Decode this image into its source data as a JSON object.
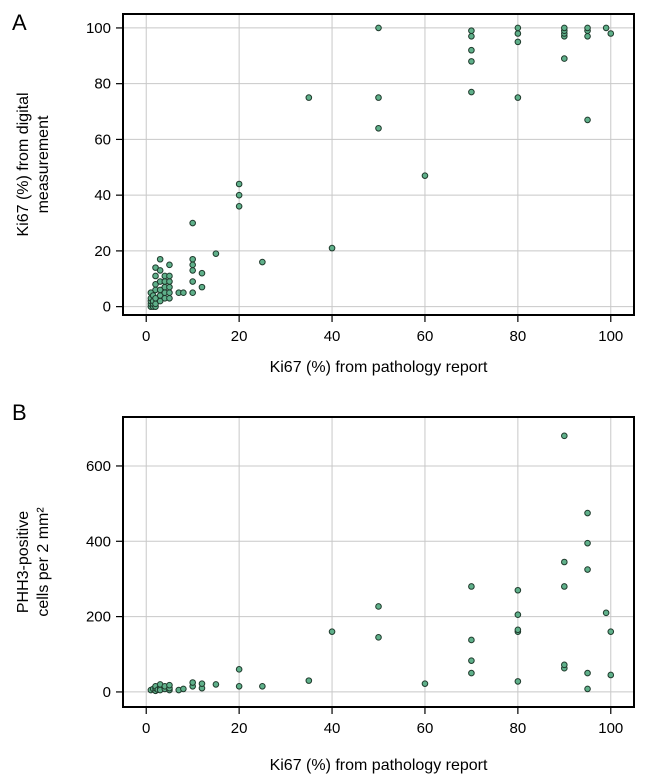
{
  "colors": {
    "point_fill": "#5fb08a",
    "point_stroke": "#1f3a2c",
    "grid": "#c8c8c8"
  },
  "chart_data": [
    {
      "panel": "A",
      "type": "scatter",
      "title": "",
      "xlabel": "Ki67 (%) from pathology report",
      "ylabel_lines": [
        "Ki67 (%) from digital",
        "measurement"
      ],
      "xlim": [
        -5,
        105
      ],
      "ylim": [
        -3,
        105
      ],
      "xticks": [
        0,
        20,
        40,
        60,
        80,
        100
      ],
      "yticks": [
        0,
        20,
        40,
        60,
        80,
        100
      ],
      "grid": true,
      "points": [
        [
          1,
          0
        ],
        [
          1,
          1
        ],
        [
          1,
          2
        ],
        [
          1,
          3
        ],
        [
          1,
          5
        ],
        [
          1.5,
          0
        ],
        [
          1.5,
          1
        ],
        [
          1.5,
          2
        ],
        [
          1.5,
          4
        ],
        [
          2,
          0
        ],
        [
          2,
          1
        ],
        [
          2,
          3
        ],
        [
          2,
          6
        ],
        [
          2,
          8
        ],
        [
          2,
          11
        ],
        [
          2,
          14
        ],
        [
          3,
          2
        ],
        [
          3,
          4
        ],
        [
          3,
          6
        ],
        [
          3,
          9
        ],
        [
          3,
          13
        ],
        [
          3,
          17
        ],
        [
          4,
          3
        ],
        [
          4,
          5
        ],
        [
          4,
          7
        ],
        [
          4,
          9
        ],
        [
          4,
          11
        ],
        [
          5,
          3
        ],
        [
          5,
          5
        ],
        [
          5,
          7
        ],
        [
          5,
          9
        ],
        [
          5,
          11
        ],
        [
          5,
          15
        ],
        [
          7,
          5
        ],
        [
          8,
          5
        ],
        [
          10,
          5
        ],
        [
          10,
          9
        ],
        [
          10,
          13
        ],
        [
          10,
          15
        ],
        [
          10,
          17
        ],
        [
          10,
          30
        ],
        [
          12,
          7
        ],
        [
          12,
          12
        ],
        [
          15,
          19
        ],
        [
          20,
          36
        ],
        [
          20,
          40
        ],
        [
          20,
          44
        ],
        [
          25,
          16
        ],
        [
          35,
          75
        ],
        [
          40,
          21
        ],
        [
          50,
          64
        ],
        [
          50,
          75
        ],
        [
          50,
          100
        ],
        [
          60,
          47
        ],
        [
          70,
          77
        ],
        [
          70,
          88
        ],
        [
          70,
          92
        ],
        [
          70,
          97
        ],
        [
          70,
          99
        ],
        [
          80,
          75
        ],
        [
          80,
          95
        ],
        [
          80,
          98
        ],
        [
          80,
          100
        ],
        [
          90,
          89
        ],
        [
          90,
          97
        ],
        [
          90,
          98
        ],
        [
          90,
          99
        ],
        [
          90,
          100
        ],
        [
          95,
          67
        ],
        [
          95,
          97
        ],
        [
          95,
          99
        ],
        [
          95,
          100
        ],
        [
          99,
          100
        ],
        [
          100,
          98
        ]
      ]
    },
    {
      "panel": "B",
      "type": "scatter",
      "title": "",
      "xlabel": "Ki67 (%) from pathology report",
      "ylabel_lines": [
        "PHH3-positive",
        "cells per 2 mm²"
      ],
      "xlim": [
        -5,
        105
      ],
      "ylim": [
        -40,
        730
      ],
      "xticks": [
        0,
        20,
        40,
        60,
        80,
        100
      ],
      "yticks": [
        0,
        200,
        400,
        600
      ],
      "grid": true,
      "points": [
        [
          1,
          5
        ],
        [
          1.5,
          8
        ],
        [
          2,
          3
        ],
        [
          2,
          10
        ],
        [
          2,
          15
        ],
        [
          2.5,
          6
        ],
        [
          3,
          12
        ],
        [
          3,
          20
        ],
        [
          3,
          5
        ],
        [
          4,
          8
        ],
        [
          4,
          15
        ],
        [
          5,
          5
        ],
        [
          5,
          10
        ],
        [
          5,
          18
        ],
        [
          7,
          5
        ],
        [
          8,
          8
        ],
        [
          10,
          15
        ],
        [
          10,
          25
        ],
        [
          12,
          10
        ],
        [
          12,
          22
        ],
        [
          15,
          20
        ],
        [
          20,
          15
        ],
        [
          20,
          60
        ],
        [
          25,
          15
        ],
        [
          35,
          30
        ],
        [
          40,
          160
        ],
        [
          50,
          145
        ],
        [
          50,
          227
        ],
        [
          60,
          22
        ],
        [
          70,
          50
        ],
        [
          70,
          83
        ],
        [
          70,
          138
        ],
        [
          70,
          280
        ],
        [
          80,
          28
        ],
        [
          80,
          160
        ],
        [
          80,
          165
        ],
        [
          80,
          205
        ],
        [
          80,
          270
        ],
        [
          90,
          63
        ],
        [
          90,
          72
        ],
        [
          90,
          280
        ],
        [
          90,
          345
        ],
        [
          90,
          680
        ],
        [
          95,
          8
        ],
        [
          95,
          50
        ],
        [
          95,
          325
        ],
        [
          95,
          395
        ],
        [
          95,
          475
        ],
        [
          99,
          210
        ],
        [
          100,
          45
        ],
        [
          100,
          160
        ]
      ]
    }
  ]
}
